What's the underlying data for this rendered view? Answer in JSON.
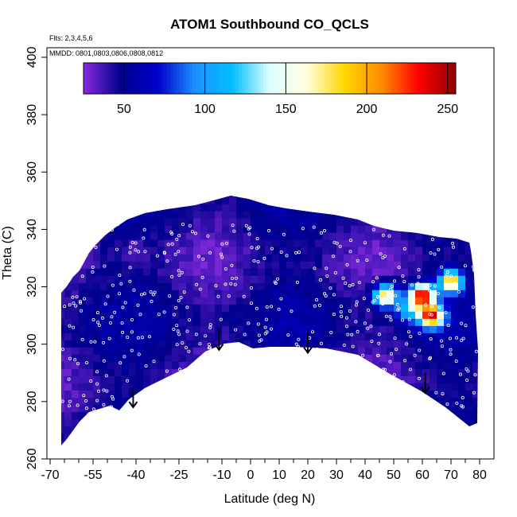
{
  "chart_data": {
    "type": "heatmap",
    "title": "ATOM1 Southbound CO_QCLS",
    "annotations": [
      "Flts: 2,3,4,5,6",
      "MMDD: 0801,0803,0806,0808,0812"
    ],
    "xlabel": "Latitude (deg N)",
    "ylabel": "Theta (C)",
    "xlim": [
      -70,
      80
    ],
    "ylim": [
      260,
      400
    ],
    "x_ticks": [
      -70,
      -55,
      -40,
      -25,
      -10,
      0,
      10,
      20,
      30,
      40,
      50,
      60,
      70,
      80
    ],
    "x_minor_ticks": [
      -65,
      -60,
      -50,
      -45,
      -35,
      -30,
      -20,
      -15,
      -5,
      5,
      15,
      25,
      35,
      45,
      55,
      65,
      75
    ],
    "y_ticks": [
      260,
      280,
      300,
      320,
      340,
      360,
      380,
      400
    ],
    "colorbar": {
      "range": [
        25,
        255
      ],
      "ticks": [
        50,
        100,
        150,
        200,
        250
      ],
      "colors": [
        "#8a2be2",
        "#00008b",
        "#0000cd",
        "#1e90ff",
        "#00bfff",
        "#e0ffff",
        "#ffffe0",
        "#ffd700",
        "#ff8c00",
        "#ff0000",
        "#8b0000"
      ]
    },
    "field_base_value": 45,
    "features": [
      {
        "name": "high-lat-enhancement",
        "lat": 55,
        "theta": 312,
        "value": 110
      },
      {
        "name": "plume-core-1",
        "lat": 60,
        "theta": 317,
        "value": 245
      },
      {
        "name": "plume-core-2",
        "lat": 63,
        "theta": 310,
        "value": 235
      },
      {
        "name": "plume-side",
        "lat": 70,
        "theta": 322,
        "value": 190
      },
      {
        "name": "plume-west",
        "lat": 47,
        "theta": 317,
        "value": 185
      },
      {
        "name": "purple-patch",
        "lat": -41,
        "theta": 332,
        "value": 28
      }
    ],
    "arrows": [
      {
        "lat": -41,
        "theta": 281
      },
      {
        "lat": -11,
        "theta": 301
      },
      {
        "lat": 20,
        "theta": 300
      },
      {
        "lat": 61,
        "theta": 286
      }
    ]
  }
}
